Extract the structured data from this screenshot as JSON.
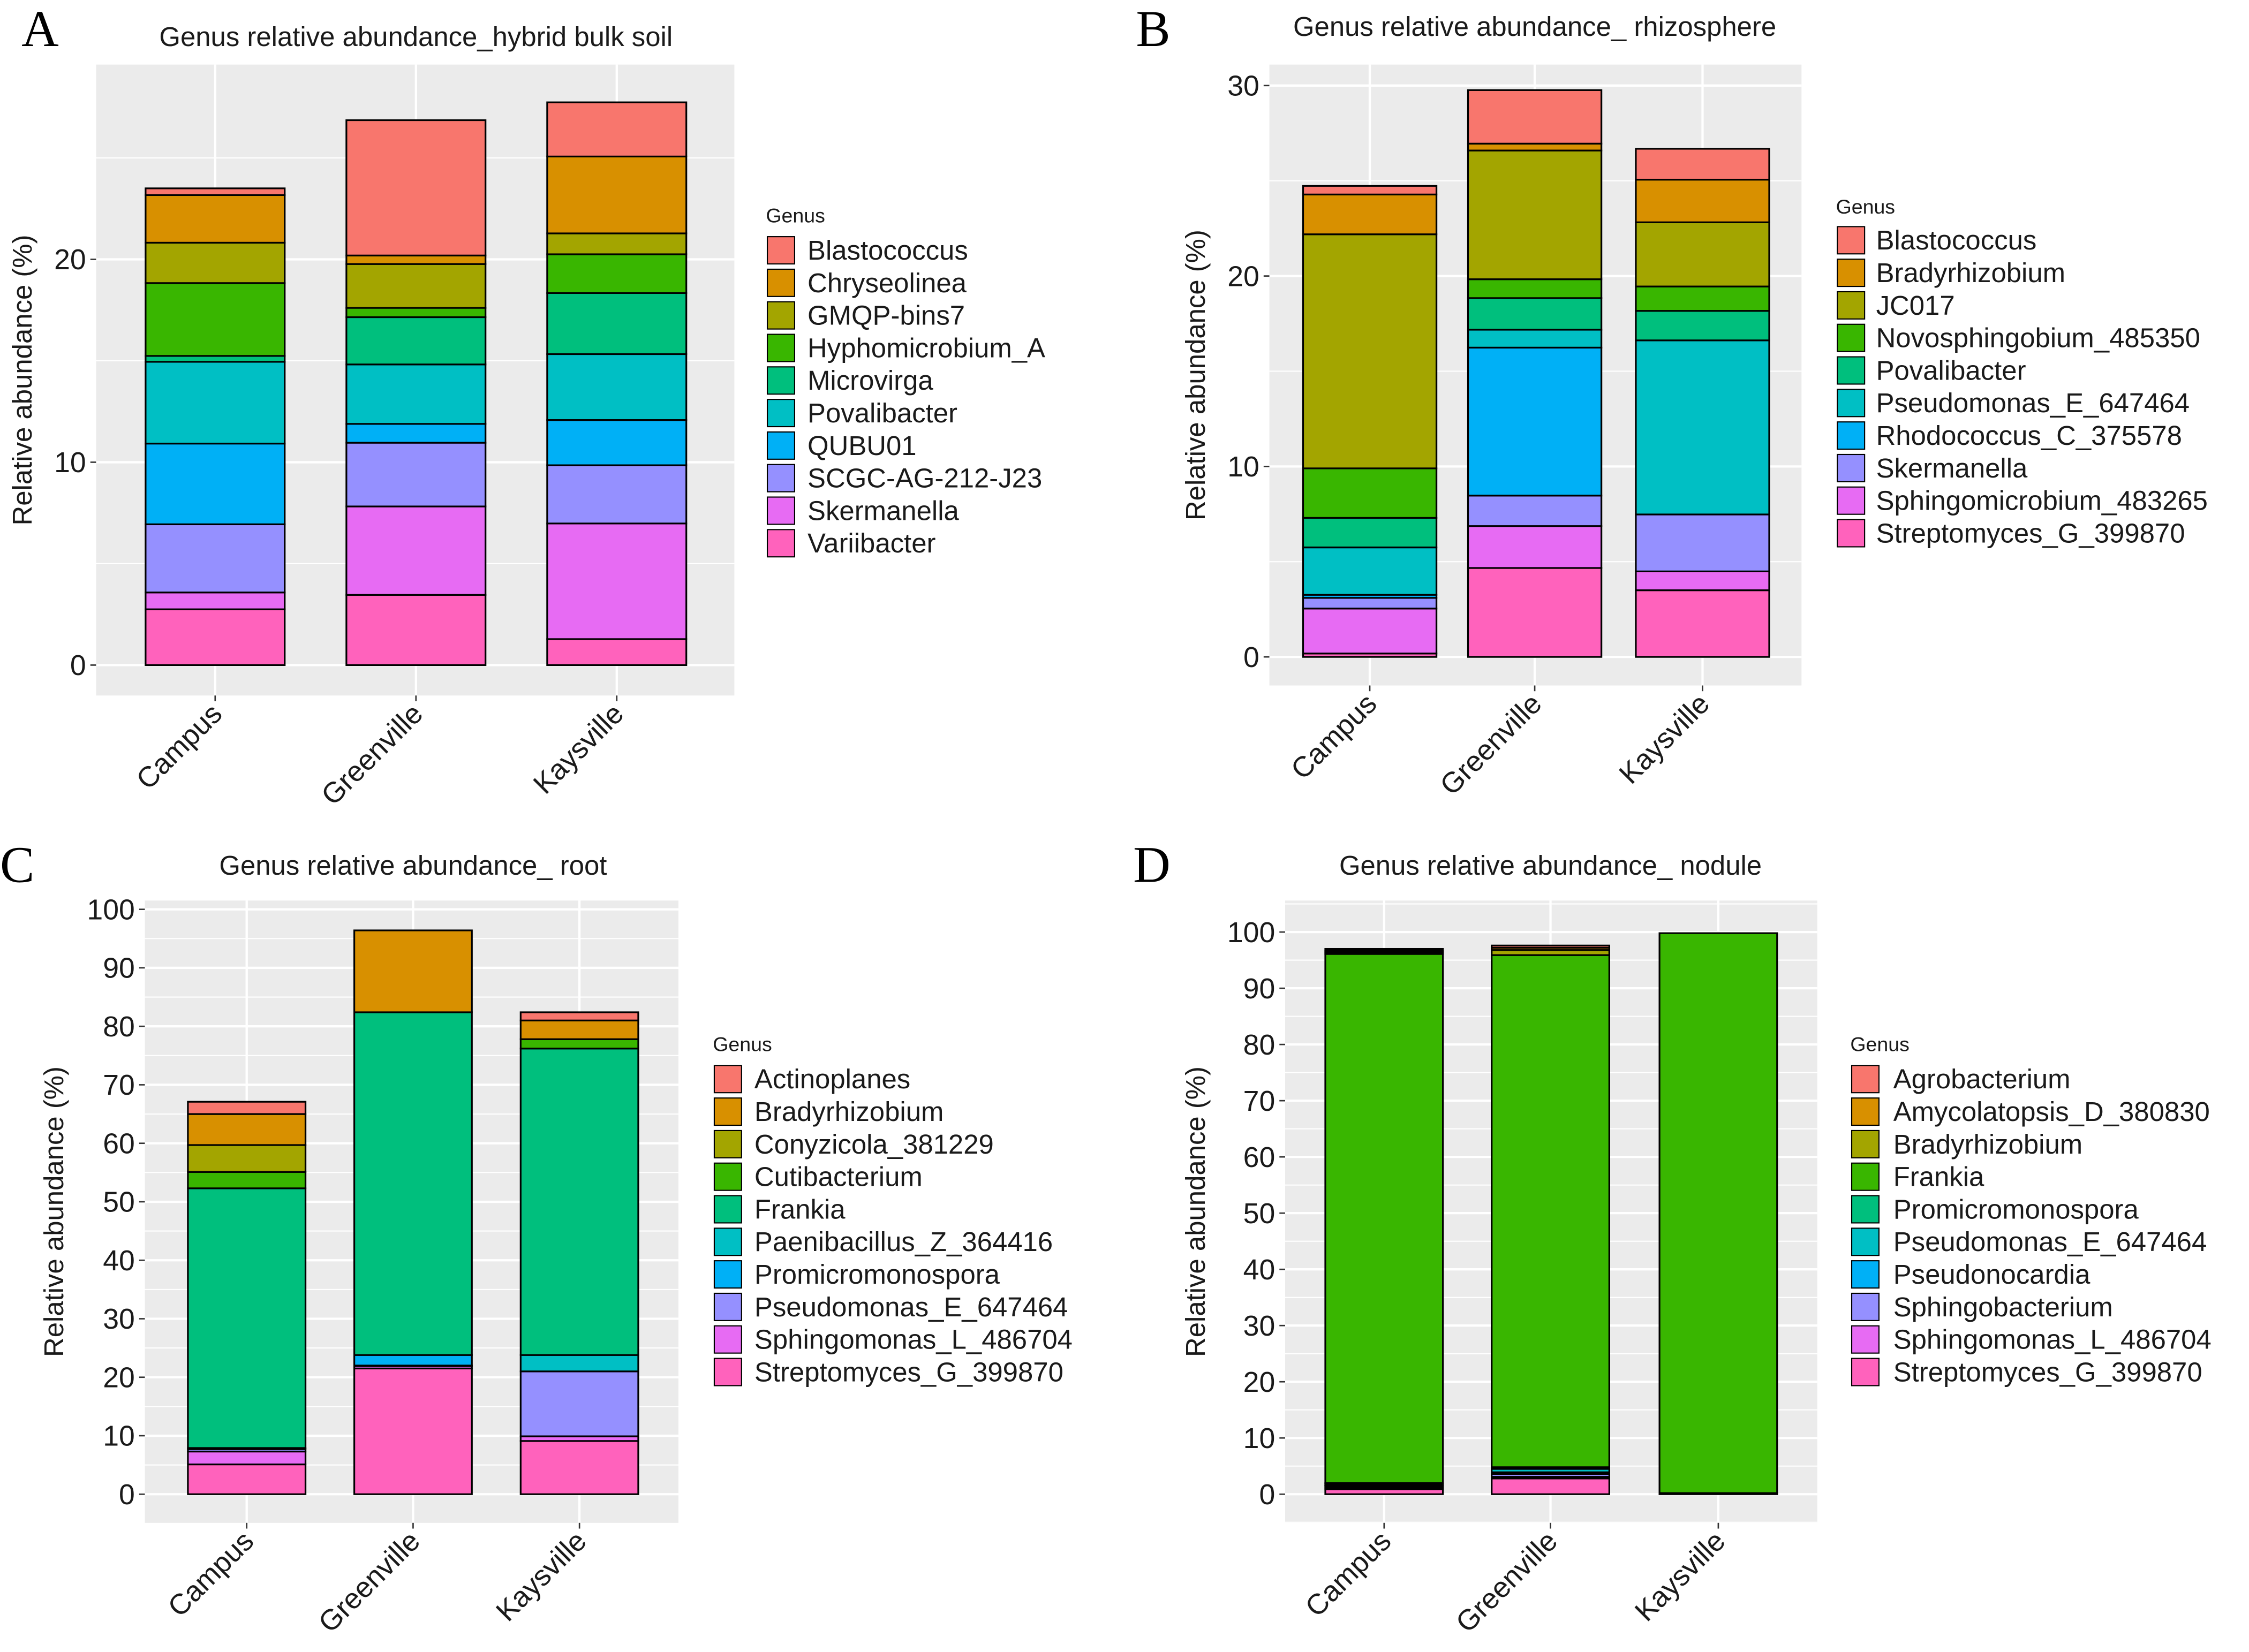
{
  "chart_data": [
    {
      "type": "bar",
      "stacked": true,
      "panel_letter": "A",
      "title": "Genus relative abundance_hybrid bulk soil",
      "xlabel": "",
      "ylabel": "Relative abundance (%)",
      "ylim": [
        -1.5,
        29.6
      ],
      "yticks": [
        0,
        10,
        20
      ],
      "grid": true,
      "legend_title": "Genus",
      "legend_position": "right",
      "categories": [
        "Campus",
        "Greenville",
        "Kaysville"
      ],
      "series": [
        {
          "name": "Blastococcus",
          "color": "#F8766D",
          "values": [
            0.33,
            6.67,
            2.67
          ]
        },
        {
          "name": "Chryseolinea",
          "color": "#D89000",
          "values": [
            2.35,
            0.42,
            3.79
          ]
        },
        {
          "name": "GMQP-bins7",
          "color": "#A3A500",
          "values": [
            1.99,
            2.16,
            1.03
          ]
        },
        {
          "name": "Hyphomicrobium_A",
          "color": "#39B600",
          "values": [
            3.59,
            0.46,
            1.91
          ]
        },
        {
          "name": "Microvirga",
          "color": "#00BF7D",
          "values": [
            0.29,
            2.33,
            3.01
          ]
        },
        {
          "name": "Povalibacter",
          "color": "#00BFC4",
          "values": [
            4.03,
            2.93,
            3.25
          ]
        },
        {
          "name": "QUBU01",
          "color": "#00B0F6",
          "values": [
            3.98,
            0.93,
            2.23
          ]
        },
        {
          "name": "SCGC-AG-212-J23",
          "color": "#9590FF",
          "values": [
            3.36,
            3.14,
            2.87
          ]
        },
        {
          "name": "Skermanella",
          "color": "#E76BF3",
          "values": [
            0.83,
            4.36,
            5.7
          ]
        },
        {
          "name": "Variibacter",
          "color": "#FF62BC",
          "values": [
            2.75,
            3.46,
            1.28
          ]
        }
      ]
    },
    {
      "type": "bar",
      "stacked": true,
      "panel_letter": "B",
      "title": "Genus relative abundance_ rhizosphere",
      "xlabel": "",
      "ylabel": "Relative abundance (%)",
      "ylim": [
        -1.5,
        31.1
      ],
      "yticks": [
        0,
        10,
        20,
        30
      ],
      "grid": true,
      "legend_title": "Genus",
      "legend_position": "right",
      "categories": [
        "Campus",
        "Greenville",
        "Kaysville"
      ],
      "series": [
        {
          "name": "Blastococcus",
          "color": "#F8766D",
          "values": [
            0.45,
            2.81,
            1.62
          ]
        },
        {
          "name": "Bradyrhizobium",
          "color": "#D89000",
          "values": [
            2.09,
            0.36,
            2.24
          ]
        },
        {
          "name": "JC017",
          "color": "#A3A500",
          "values": [
            12.29,
            6.76,
            3.37
          ]
        },
        {
          "name": "Novosphingobium_485350",
          "color": "#39B600",
          "values": [
            2.6,
            0.99,
            1.28
          ]
        },
        {
          "name": "Povalibacter",
          "color": "#00BF7D",
          "values": [
            1.55,
            1.66,
            1.55
          ]
        },
        {
          "name": "Pseudomonas_E_647464",
          "color": "#00BFC4",
          "values": [
            2.49,
            0.94,
            9.14
          ]
        },
        {
          "name": "Rhodococcus_C_375578",
          "color": "#00B0F6",
          "values": [
            0.16,
            7.77,
            0
          ]
        },
        {
          "name": "Skermanella",
          "color": "#9590FF",
          "values": [
            0.56,
            1.6,
            2.99
          ]
        },
        {
          "name": "Sphingomicrobium_483265",
          "color": "#E76BF3",
          "values": [
            2.36,
            2.2,
            0.99
          ]
        },
        {
          "name": "Streptomyces_G_399870",
          "color": "#FF62BC",
          "values": [
            0.18,
            4.67,
            3.5
          ]
        }
      ]
    },
    {
      "type": "bar",
      "stacked": true,
      "panel_letter": "C",
      "title": "Genus relative abundance_ root",
      "xlabel": "",
      "ylabel": "Relative abundance (%)",
      "ylim": [
        -4.9,
        101.5
      ],
      "yticks": [
        0,
        10,
        20,
        30,
        40,
        50,
        60,
        70,
        80,
        90,
        100
      ],
      "grid": true,
      "legend_title": "Genus",
      "legend_position": "right",
      "categories": [
        "Campus",
        "Greenville",
        "Kaysville"
      ],
      "series": [
        {
          "name": "Actinoplanes",
          "color": "#F8766D",
          "values": [
            2.1,
            0,
            1.4
          ]
        },
        {
          "name": "Bradyrhizobium",
          "color": "#D89000",
          "values": [
            5.3,
            14.0,
            3.2
          ]
        },
        {
          "name": "Conyzicola_381229",
          "color": "#A3A500",
          "values": [
            4.6,
            0,
            0
          ]
        },
        {
          "name": "Cutibacterium",
          "color": "#39B600",
          "values": [
            2.8,
            0,
            1.6
          ]
        },
        {
          "name": "Frankia",
          "color": "#00BF7D",
          "values": [
            44.4,
            58.6,
            52.4
          ]
        },
        {
          "name": "Paenibacillus_Z_364416",
          "color": "#00BFC4",
          "values": [
            0,
            0,
            2.8
          ]
        },
        {
          "name": "Promicromonospora",
          "color": "#00B0F6",
          "values": [
            0.2,
            1.8,
            0
          ]
        },
        {
          "name": "Pseudomonas_E_647464",
          "color": "#9590FF",
          "values": [
            0.4,
            0.1,
            11.1
          ]
        },
        {
          "name": "Sphingomonas_L_486704",
          "color": "#E76BF3",
          "values": [
            2.2,
            0.4,
            0.8
          ]
        },
        {
          "name": "Streptomyces_G_399870",
          "color": "#FF62BC",
          "values": [
            5.1,
            21.5,
            9.1
          ]
        }
      ]
    },
    {
      "type": "bar",
      "stacked": true,
      "panel_letter": "D",
      "title": "Genus relative abundance_ nodule",
      "xlabel": "",
      "ylabel": "Relative abundance (%)",
      "ylim": [
        -5.1,
        105.6
      ],
      "yticks": [
        0,
        10,
        20,
        30,
        40,
        50,
        60,
        70,
        80,
        90,
        100
      ],
      "grid": true,
      "legend_title": "Genus",
      "legend_position": "right",
      "categories": [
        "Campus",
        "Greenville",
        "Kaysville"
      ],
      "series": [
        {
          "name": "Agrobacterium",
          "color": "#F8766D",
          "values": [
            0.3,
            0.4,
            0
          ]
        },
        {
          "name": "Amycolatopsis_D_380830",
          "color": "#D89000",
          "values": [
            0.3,
            0.4,
            0
          ]
        },
        {
          "name": "Bradyrhizobium",
          "color": "#A3A500",
          "values": [
            0.3,
            0.9,
            0
          ]
        },
        {
          "name": "Frankia",
          "color": "#39B600",
          "values": [
            94.1,
            91.1,
            99.6
          ]
        },
        {
          "name": "Promicromonospora",
          "color": "#00BF7D",
          "values": [
            0.1,
            0.3,
            0
          ]
        },
        {
          "name": "Pseudomonas_E_647464",
          "color": "#00BFC4",
          "values": [
            0.3,
            0.6,
            0.1
          ]
        },
        {
          "name": "Pseudonocardia",
          "color": "#00B0F6",
          "values": [
            0.1,
            0.3,
            0
          ]
        },
        {
          "name": "Sphingobacterium",
          "color": "#9590FF",
          "values": [
            0.3,
            0.5,
            0
          ]
        },
        {
          "name": "Sphingomonas_L_486704",
          "color": "#E76BF3",
          "values": [
            0.3,
            0.3,
            0
          ]
        },
        {
          "name": "Streptomyces_G_399870",
          "color": "#FF62BC",
          "values": [
            0.9,
            2.8,
            0.1
          ]
        }
      ]
    }
  ]
}
